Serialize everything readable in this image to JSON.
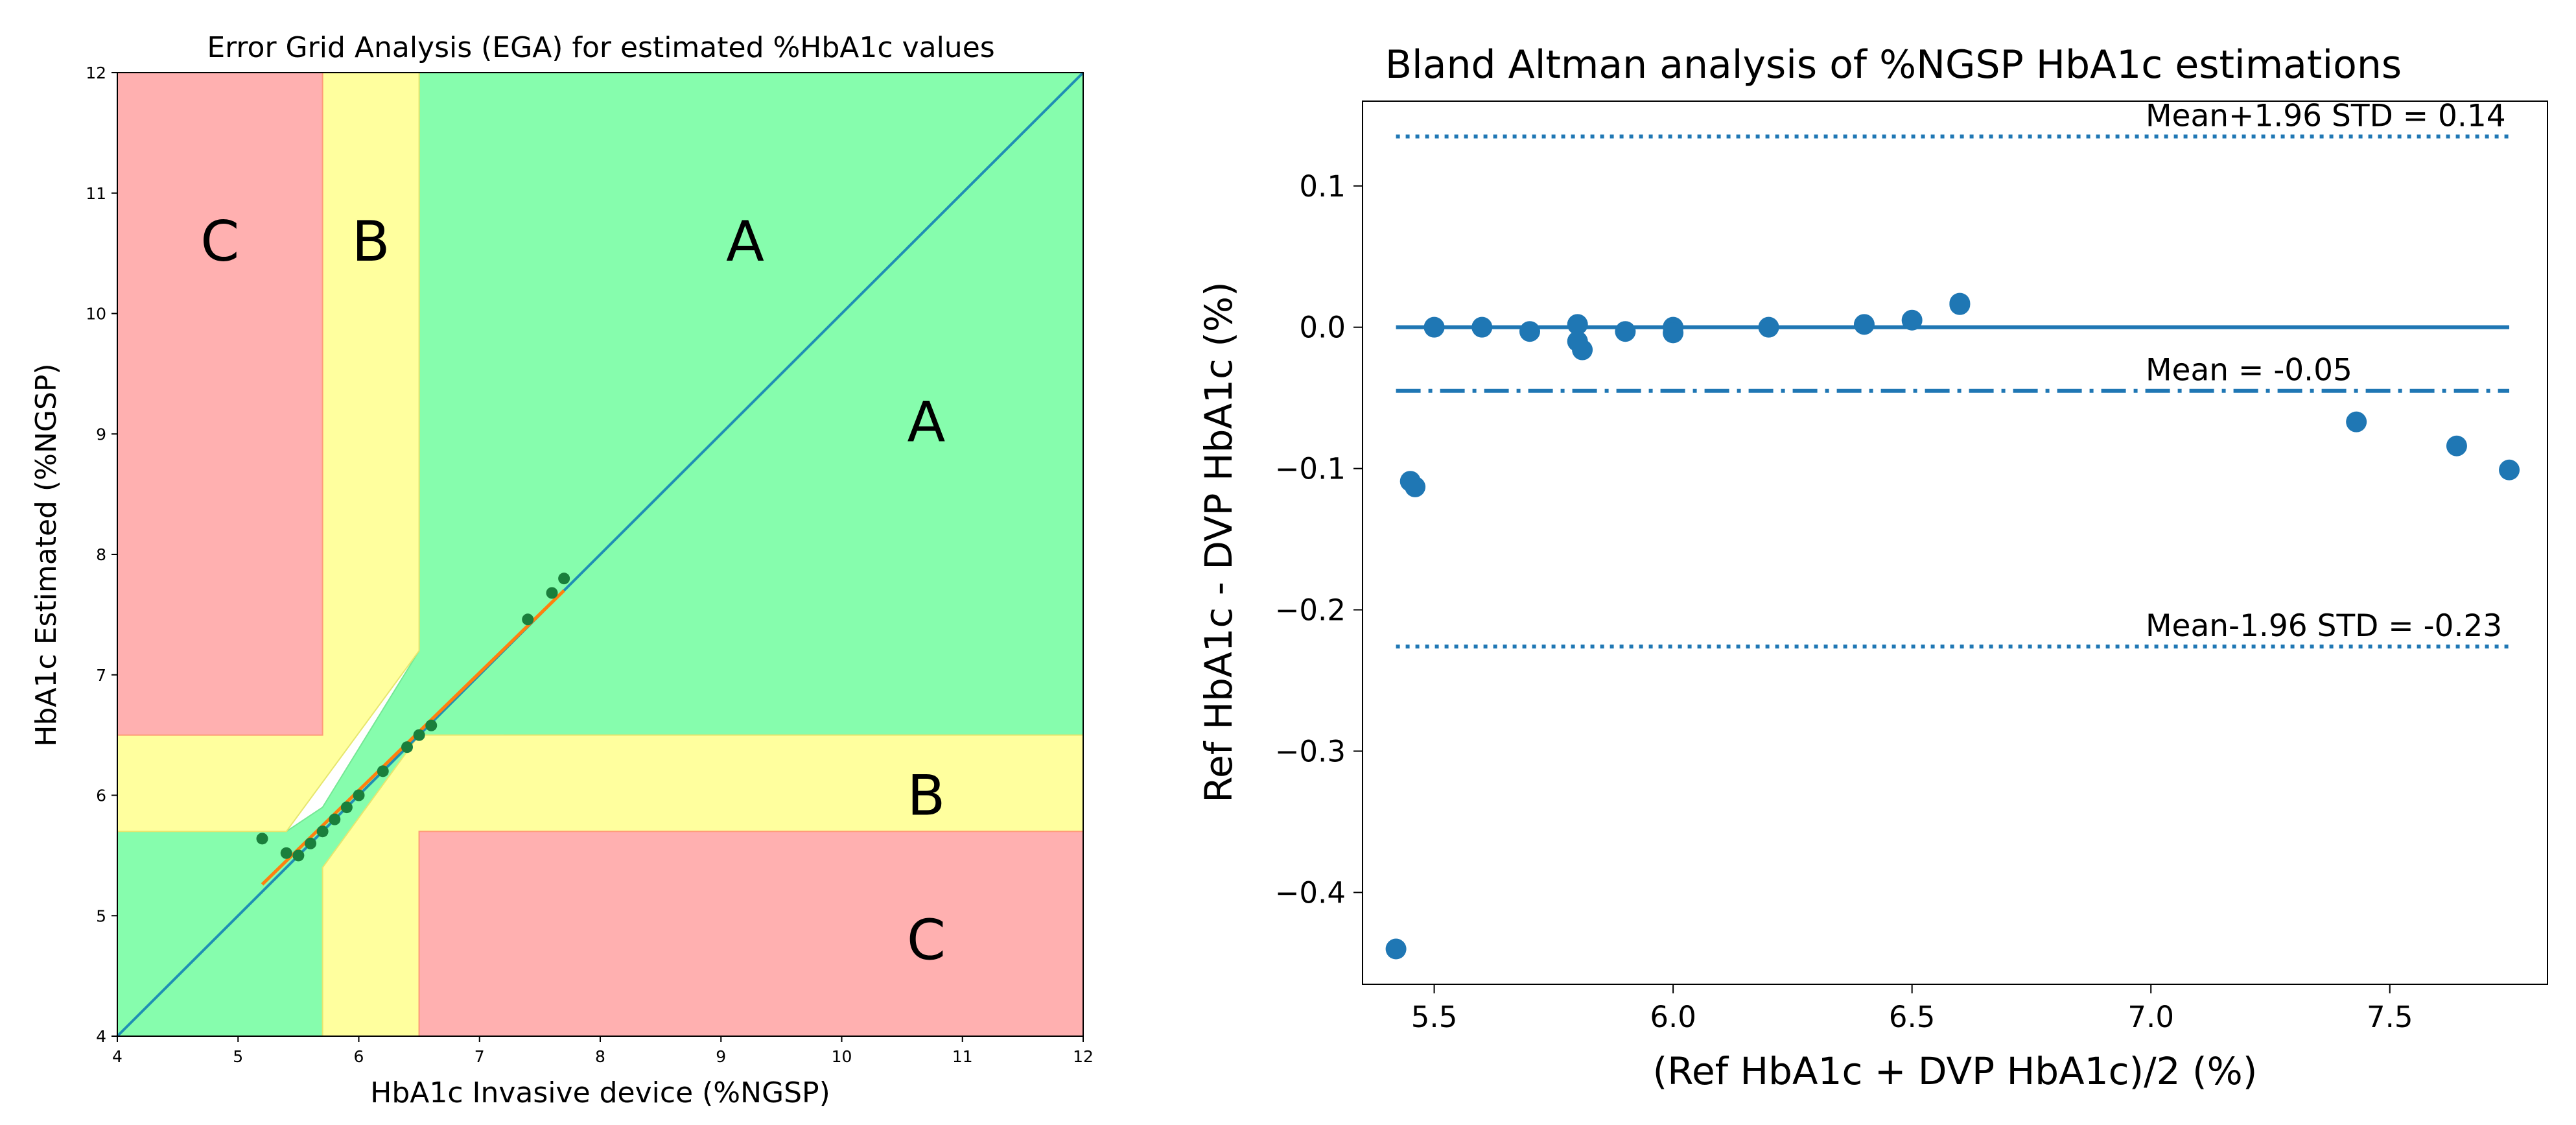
{
  "chart_data": [
    {
      "type": "scatter",
      "title": "Error Grid Analysis (EGA) for estimated %HbA1c values",
      "xlabel": "HbA1c Invasive device (%NGSP)",
      "ylabel": "HbA1c Estimated (%NGSP)",
      "xlim": [
        4,
        12
      ],
      "ylim": [
        4,
        12
      ],
      "xticks": [
        4,
        5,
        6,
        7,
        8,
        9,
        10,
        11,
        12
      ],
      "yticks": [
        4,
        5,
        6,
        7,
        8,
        9,
        10,
        11,
        12
      ],
      "grid": false,
      "colors": {
        "zone_a": "#86fdad",
        "zone_b": "#ffff9e",
        "zone_c": "#ffb0b0",
        "identity_line": "#1f8fb4",
        "fit_line": "#ff7f0e",
        "points": "#1a7f3c"
      },
      "zones": [
        {
          "label": "A",
          "x": 9.2,
          "y": 10.6
        },
        {
          "label": "A",
          "x": 10.7,
          "y": 9.1
        },
        {
          "label": "B",
          "x": 6.1,
          "y": 10.6
        },
        {
          "label": "B",
          "x": 10.7,
          "y": 6.0
        },
        {
          "label": "C",
          "x": 4.85,
          "y": 10.6
        },
        {
          "label": "C",
          "x": 10.7,
          "y": 4.8
        }
      ],
      "zone_polygons": {
        "A": [
          [
            4,
            4
          ],
          [
            4,
            5.7
          ],
          [
            5.4,
            5.7
          ],
          [
            5.7,
            5.9
          ],
          [
            6.5,
            7.2
          ],
          [
            6.5,
            12
          ],
          [
            12,
            12
          ],
          [
            12,
            6.5
          ],
          [
            7.2,
            6.5
          ],
          [
            6.5,
            5.9
          ],
          [
            6.5,
            5.7
          ],
          [
            12,
            5.7
          ],
          [
            12,
            4
          ]
        ],
        "B": [
          [
            [
              5.7,
              12
            ],
            [
              6.5,
              12
            ],
            [
              6.5,
              7.2
            ],
            [
              5.4,
              5.7
            ],
            [
              4,
              5.7
            ],
            [
              4,
              6.5
            ],
            [
              5.7,
              6.5
            ]
          ],
          [
            [
              5.7,
              4
            ],
            [
              5.7,
              5.4
            ],
            [
              6.5,
              6.5
            ],
            [
              12,
              6.5
            ],
            [
              12,
              5.7
            ],
            [
              6.5,
              5.7
            ],
            [
              6.5,
              4
            ]
          ]
        ],
        "C": [
          [
            [
              4,
              6.5
            ],
            [
              4,
              12
            ],
            [
              5.7,
              12
            ],
            [
              5.7,
              6.5
            ]
          ],
          [
            [
              6.5,
              4
            ],
            [
              6.5,
              5.7
            ],
            [
              12,
              5.7
            ],
            [
              12,
              4
            ]
          ]
        ]
      },
      "series": [
        {
          "name": "identity",
          "kind": "line",
          "x": [
            4,
            12
          ],
          "y": [
            4,
            12
          ]
        },
        {
          "name": "fit",
          "kind": "line",
          "x": [
            5.2,
            7.7
          ],
          "y": [
            5.26,
            7.7
          ]
        },
        {
          "name": "estimates",
          "kind": "scatter",
          "x": [
            5.2,
            5.4,
            5.5,
            5.6,
            5.7,
            5.8,
            5.9,
            6.0,
            6.2,
            6.4,
            6.5,
            6.6,
            7.4,
            7.6,
            7.7
          ],
          "y": [
            5.64,
            5.52,
            5.5,
            5.6,
            5.7,
            5.8,
            5.9,
            6.0,
            6.2,
            6.4,
            6.5,
            6.58,
            7.46,
            7.68,
            7.8
          ]
        }
      ]
    },
    {
      "type": "scatter",
      "title": "Bland Altman analysis of %NGSP HbA1c estimations",
      "xlabel": "(Ref HbA1c + DVP HbA1c)/2 (%)",
      "ylabel": "Ref HbA1c - DVP HbA1c (%)",
      "xlim": [
        5.35,
        7.83
      ],
      "ylim": [
        -0.465,
        0.16
      ],
      "xticks": [
        5.5,
        6.0,
        6.5,
        7.0,
        7.5
      ],
      "xtick_labels": [
        "5.5",
        "6.0",
        "6.5",
        "7.0",
        "7.5"
      ],
      "yticks": [
        0.1,
        0.0,
        -0.1,
        -0.2,
        -0.3,
        -0.4
      ],
      "ytick_labels": [
        "0.1",
        "0.0",
        "−0.1",
        "−0.2",
        "−0.3",
        "−0.4"
      ],
      "grid": false,
      "colors": {
        "primary": "#1f77b4"
      },
      "lines": [
        {
          "name": "zero",
          "y": 0.0,
          "style": "solid",
          "x_from": 5.42,
          "x_to": 7.75
        },
        {
          "name": "mean",
          "y": -0.045,
          "style": "dashdot",
          "x_from": 5.42,
          "x_to": 7.75,
          "label": "Mean = -0.05"
        },
        {
          "name": "upper",
          "y": 0.135,
          "style": "dotted",
          "x_from": 5.42,
          "x_to": 7.75,
          "label": "Mean+1.96 STD = 0.14"
        },
        {
          "name": "lower",
          "y": -0.226,
          "style": "dotted",
          "x_from": 5.42,
          "x_to": 7.75,
          "label": "Mean-1.96 STD = -0.23"
        }
      ],
      "series": [
        {
          "name": "differences",
          "x": [
            5.42,
            5.45,
            5.46,
            5.5,
            5.6,
            5.7,
            5.8,
            5.8,
            5.81,
            5.9,
            6.0,
            6.0,
            6.2,
            6.4,
            6.5,
            6.6,
            6.6,
            7.43,
            7.64,
            7.75
          ],
          "y": [
            -0.44,
            -0.109,
            -0.113,
            0.0,
            0.0,
            -0.003,
            0.002,
            -0.01,
            -0.016,
            -0.003,
            0.0,
            -0.004,
            0.0,
            0.002,
            0.005,
            0.016,
            0.017,
            -0.067,
            -0.084,
            -0.101
          ]
        }
      ]
    }
  ]
}
